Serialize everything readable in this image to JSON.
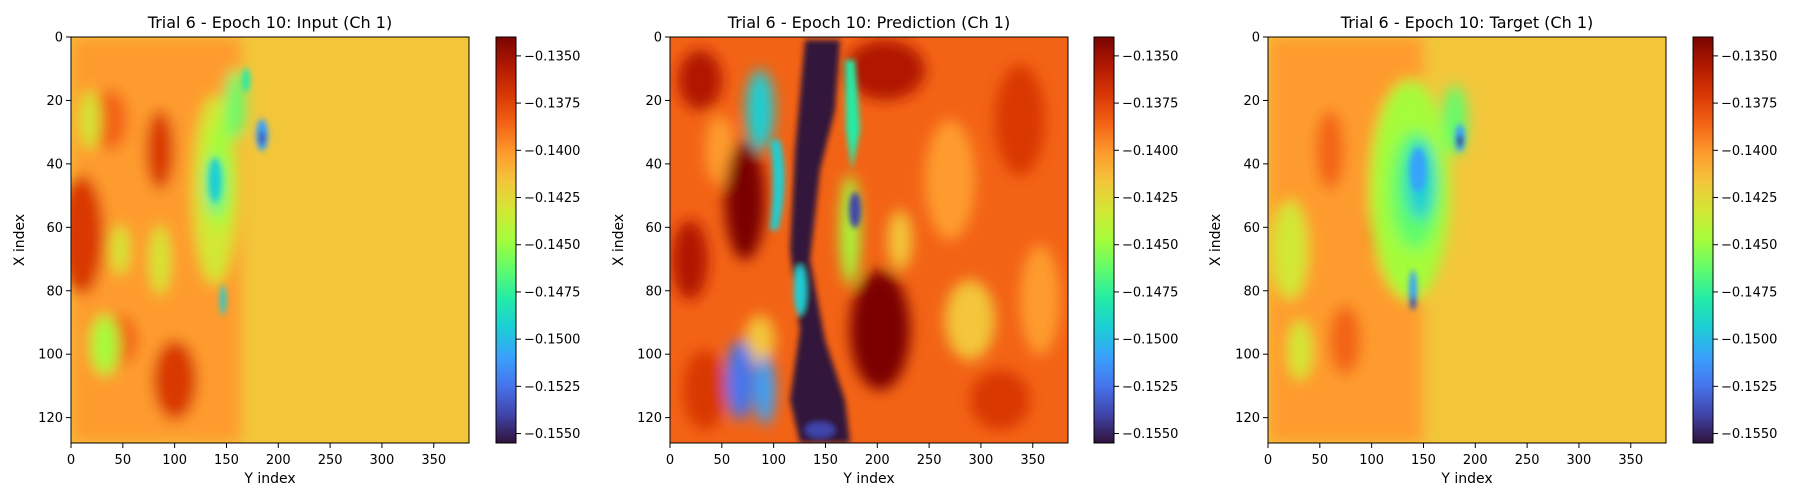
{
  "chart_data": [
    {
      "type": "heatmap",
      "title": "Trial 6 - Epoch 10: Input (Ch 1)",
      "xlabel": "Y index",
      "ylabel": "X index",
      "xlim": [
        0,
        384
      ],
      "ylim": [
        128,
        0
      ],
      "x_ticks": [
        0,
        50,
        100,
        150,
        200,
        250,
        300,
        350
      ],
      "y_ticks": [
        0,
        20,
        40,
        60,
        80,
        100,
        120
      ],
      "colorbar": {
        "range": [
          -0.1555,
          -0.134
        ],
        "colormap": "turbo",
        "ticks": [
          -0.135,
          -0.1375,
          -0.14,
          -0.1425,
          -0.145,
          -0.1475,
          -0.15,
          -0.1525,
          -0.155
        ],
        "tick_labels": [
          "−0.1350",
          "−0.1375",
          "−0.1400",
          "−0.1425",
          "−0.1450",
          "−0.1475",
          "−0.1500",
          "−0.1525",
          "−0.1550"
        ]
      }
    },
    {
      "type": "heatmap",
      "title": "Trial 6 - Epoch 10: Prediction (Ch 1)",
      "xlabel": "Y index",
      "ylabel": "X index",
      "xlim": [
        0,
        384
      ],
      "ylim": [
        128,
        0
      ],
      "x_ticks": [
        0,
        50,
        100,
        150,
        200,
        250,
        300,
        350
      ],
      "y_ticks": [
        0,
        20,
        40,
        60,
        80,
        100,
        120
      ],
      "colorbar": {
        "range": [
          -0.1555,
          -0.134
        ],
        "colormap": "turbo",
        "ticks": [
          -0.135,
          -0.1375,
          -0.14,
          -0.1425,
          -0.145,
          -0.1475,
          -0.15,
          -0.1525,
          -0.155
        ],
        "tick_labels": [
          "−0.1350",
          "−0.1375",
          "−0.1400",
          "−0.1425",
          "−0.1450",
          "−0.1475",
          "−0.1500",
          "−0.1525",
          "−0.1550"
        ]
      }
    },
    {
      "type": "heatmap",
      "title": "Trial 6 - Epoch 10: Target (Ch 1)",
      "xlabel": "Y index",
      "ylabel": "X index",
      "xlim": [
        0,
        384
      ],
      "ylim": [
        128,
        0
      ],
      "x_ticks": [
        0,
        50,
        100,
        150,
        200,
        250,
        300,
        350
      ],
      "y_ticks": [
        0,
        20,
        40,
        60,
        80,
        100,
        120
      ],
      "colorbar": {
        "range": [
          -0.1555,
          -0.134
        ],
        "colormap": "turbo",
        "ticks": [
          -0.135,
          -0.1375,
          -0.14,
          -0.1425,
          -0.145,
          -0.1475,
          -0.15,
          -0.1525,
          -0.155
        ],
        "tick_labels": [
          "−0.1350",
          "−0.1375",
          "−0.1400",
          "−0.1425",
          "−0.1450",
          "−0.1475",
          "−0.1500",
          "−0.1525",
          "−0.1550"
        ]
      }
    }
  ]
}
